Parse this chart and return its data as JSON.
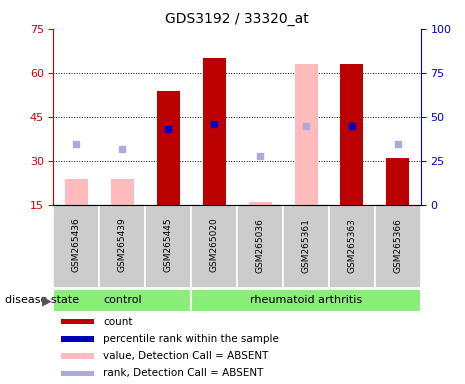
{
  "title": "GDS3192 / 33320_at",
  "samples": [
    "GSM265436",
    "GSM265439",
    "GSM265445",
    "GSM265020",
    "GSM265036",
    "GSM265361",
    "GSM265363",
    "GSM265366"
  ],
  "group_labels": [
    "control",
    "rheumatoid arthritis"
  ],
  "ylim_left": [
    15,
    75
  ],
  "ylim_right": [
    0,
    100
  ],
  "yticks_left": [
    15,
    30,
    45,
    60,
    75
  ],
  "yticks_right": [
    0,
    25,
    50,
    75,
    100
  ],
  "left_axis_color": "#cc0000",
  "right_axis_color": "#0000cc",
  "bar_color_red": "#bb0000",
  "bar_color_pink": "#ffbbbb",
  "dot_color_blue": "#0000bb",
  "dot_color_lightblue": "#aaaadd",
  "count_values": [
    null,
    null,
    54,
    65,
    null,
    null,
    63,
    31
  ],
  "rank_values_pct": [
    null,
    null,
    43,
    46,
    null,
    null,
    45,
    null
  ],
  "value_absent": [
    24,
    24,
    null,
    null,
    16,
    63,
    null,
    null
  ],
  "rank_absent_pct": [
    35,
    32,
    null,
    null,
    28,
    45,
    null,
    35
  ],
  "disease_state_label": "disease state",
  "legend_items": [
    {
      "label": "count",
      "color": "#bb0000"
    },
    {
      "label": "percentile rank within the sample",
      "color": "#0000bb"
    },
    {
      "label": "value, Detection Call = ABSENT",
      "color": "#ffbbbb"
    },
    {
      "label": "rank, Detection Call = ABSENT",
      "color": "#aaaadd"
    }
  ],
  "background_color": "#ffffff",
  "panel_color": "#cccccc",
  "green_color": "#88ee77",
  "bar_width": 0.5
}
